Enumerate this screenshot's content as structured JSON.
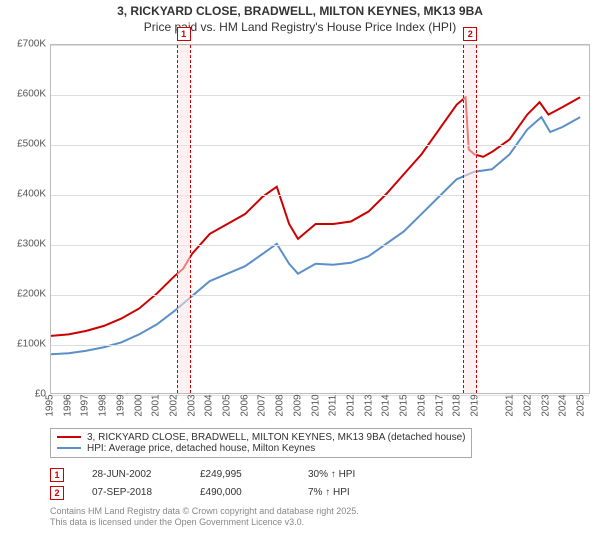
{
  "title_line1": "3, RICKYARD CLOSE, BRADWELL, MILTON KEYNES, MK13 9BA",
  "title_line2": "Price paid vs. HM Land Registry's House Price Index (HPI)",
  "chart": {
    "type": "line",
    "x_years": [
      1995,
      1996,
      1997,
      1998,
      1999,
      2000,
      2001,
      2002,
      2003,
      2004,
      2005,
      2006,
      2007,
      2008,
      2009,
      2010,
      2011,
      2012,
      2013,
      2014,
      2015,
      2016,
      2017,
      2018,
      2019,
      2021,
      2022,
      2023,
      2024,
      2025
    ],
    "x_range": [
      1995,
      2025.5
    ],
    "ylim": [
      0,
      700000
    ],
    "ytick_step": 100000,
    "y_tick_labels": [
      "£0",
      "£100K",
      "£200K",
      "£300K",
      "£400K",
      "£500K",
      "£600K",
      "£700K"
    ],
    "grid_color": "#dddddd",
    "border_color": "#bbbbbb",
    "background_color": "#ffffff",
    "series": [
      {
        "name": "price_paid",
        "label": "3, RICKYARD CLOSE, BRADWELL, MILTON KEYNES, MK13 9BA (detached house)",
        "color": "#cc0000",
        "line_width": 2,
        "data": [
          [
            1995,
            115000
          ],
          [
            1996,
            118000
          ],
          [
            1997,
            125000
          ],
          [
            1998,
            135000
          ],
          [
            1999,
            150000
          ],
          [
            2000,
            170000
          ],
          [
            2001,
            200000
          ],
          [
            2002,
            235000
          ],
          [
            2002.49,
            249995
          ],
          [
            2003,
            280000
          ],
          [
            2004,
            320000
          ],
          [
            2005,
            340000
          ],
          [
            2006,
            360000
          ],
          [
            2007,
            395000
          ],
          [
            2007.8,
            415000
          ],
          [
            2008.5,
            340000
          ],
          [
            2009,
            310000
          ],
          [
            2010,
            340000
          ],
          [
            2011,
            340000
          ],
          [
            2012,
            345000
          ],
          [
            2013,
            365000
          ],
          [
            2014,
            400000
          ],
          [
            2015,
            440000
          ],
          [
            2016,
            480000
          ],
          [
            2017,
            530000
          ],
          [
            2018,
            580000
          ],
          [
            2018.5,
            595000
          ],
          [
            2018.68,
            490000
          ],
          [
            2019,
            480000
          ],
          [
            2019.5,
            475000
          ],
          [
            2020,
            485000
          ],
          [
            2021,
            510000
          ],
          [
            2022,
            560000
          ],
          [
            2022.7,
            585000
          ],
          [
            2023.2,
            560000
          ],
          [
            2024,
            575000
          ],
          [
            2025,
            595000
          ]
        ]
      },
      {
        "name": "hpi",
        "label": "HPI: Average price, detached house, Milton Keynes",
        "color": "#5b8fc7",
        "line_width": 2,
        "data": [
          [
            1995,
            78000
          ],
          [
            1996,
            80000
          ],
          [
            1997,
            85000
          ],
          [
            1998,
            92000
          ],
          [
            1999,
            102000
          ],
          [
            2000,
            118000
          ],
          [
            2001,
            138000
          ],
          [
            2002,
            165000
          ],
          [
            2003,
            195000
          ],
          [
            2004,
            225000
          ],
          [
            2005,
            240000
          ],
          [
            2006,
            255000
          ],
          [
            2007,
            280000
          ],
          [
            2007.8,
            300000
          ],
          [
            2008.5,
            260000
          ],
          [
            2009,
            240000
          ],
          [
            2010,
            260000
          ],
          [
            2011,
            258000
          ],
          [
            2012,
            262000
          ],
          [
            2013,
            275000
          ],
          [
            2014,
            300000
          ],
          [
            2015,
            325000
          ],
          [
            2016,
            360000
          ],
          [
            2017,
            395000
          ],
          [
            2018,
            430000
          ],
          [
            2019,
            445000
          ],
          [
            2020,
            450000
          ],
          [
            2021,
            480000
          ],
          [
            2022,
            530000
          ],
          [
            2022.8,
            555000
          ],
          [
            2023.3,
            525000
          ],
          [
            2024,
            535000
          ],
          [
            2025,
            555000
          ]
        ]
      }
    ],
    "markers": [
      {
        "id": "1",
        "x": 2002.49
      },
      {
        "id": "2",
        "x": 2018.68
      }
    ]
  },
  "legend": {
    "items": [
      {
        "color": "#cc0000",
        "label": "3, RICKYARD CLOSE, BRADWELL, MILTON KEYNES, MK13 9BA (detached house)"
      },
      {
        "color": "#5b8fc7",
        "label": "HPI: Average price, detached house, Milton Keynes"
      }
    ]
  },
  "sales": [
    {
      "id": "1",
      "date": "28-JUN-2002",
      "price": "£249,995",
      "delta": "30% ↑ HPI"
    },
    {
      "id": "2",
      "date": "07-SEP-2018",
      "price": "£490,000",
      "delta": "7% ↑ HPI"
    }
  ],
  "footer_line1": "Contains HM Land Registry data © Crown copyright and database right 2025.",
  "footer_line2": "This data is licensed under the Open Government Licence v3.0."
}
